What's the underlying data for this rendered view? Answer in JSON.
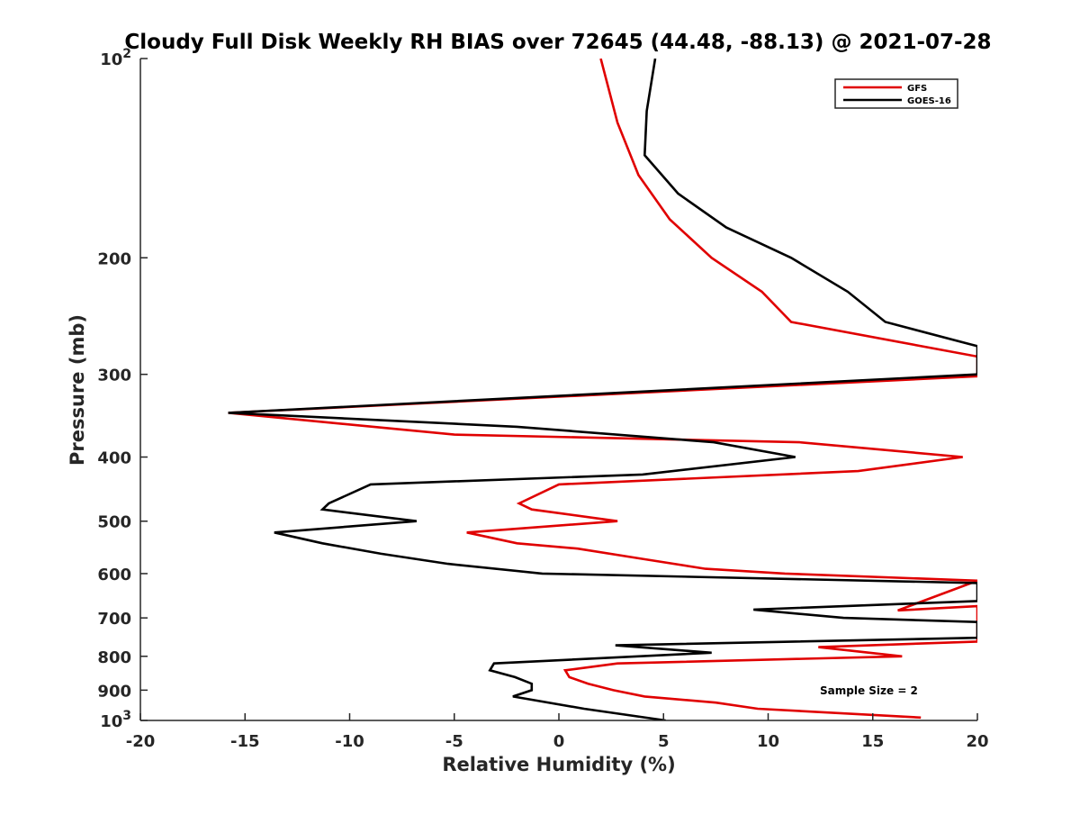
{
  "chart_data": {
    "type": "line",
    "title": "Cloudy Full Disk Weekly RH BIAS over 72645 (44.48, -88.13) @ 2021-07-28",
    "xlabel": "Relative Humidity (%)",
    "ylabel": "Pressure (mb)",
    "xlim": [
      -20,
      20
    ],
    "ylim": [
      100,
      1000
    ],
    "yscale": "log",
    "y_reversed": true,
    "grid": false,
    "legend_position": "top-right",
    "x_ticks": [
      {
        "value": -20,
        "label": "-20"
      },
      {
        "value": -15,
        "label": "-15"
      },
      {
        "value": -10,
        "label": "-10"
      },
      {
        "value": -5,
        "label": "-5"
      },
      {
        "value": 0,
        "label": "0"
      },
      {
        "value": 5,
        "label": "5"
      },
      {
        "value": 10,
        "label": "10"
      },
      {
        "value": 15,
        "label": "15"
      },
      {
        "value": 20,
        "label": "20"
      }
    ],
    "y_ticks": [
      {
        "value": 100,
        "base": "10",
        "exp": "2"
      },
      {
        "value": 200,
        "label": "200"
      },
      {
        "value": 300,
        "label": "300"
      },
      {
        "value": 400,
        "label": "400"
      },
      {
        "value": 500,
        "label": "500"
      },
      {
        "value": 600,
        "label": "600"
      },
      {
        "value": 700,
        "label": "700"
      },
      {
        "value": 800,
        "label": "800"
      },
      {
        "value": 900,
        "label": "900"
      },
      {
        "value": 1000,
        "base": "10",
        "exp": "3"
      }
    ],
    "series": [
      {
        "name": "GFS",
        "color": "#e00000",
        "points": [
          [
            2.0,
            100
          ],
          [
            2.8,
            125
          ],
          [
            3.8,
            150
          ],
          [
            5.3,
            175
          ],
          [
            7.3,
            200
          ],
          [
            9.7,
            225
          ],
          [
            11.1,
            250
          ],
          [
            20,
            282
          ],
          [
            20,
            302
          ],
          [
            -15.8,
            343
          ],
          [
            -5.0,
            370
          ],
          [
            11.5,
            380
          ],
          [
            19.3,
            400
          ],
          [
            14.3,
            420
          ],
          [
            0.0,
            440
          ],
          [
            -1.9,
            470
          ],
          [
            -1.3,
            480
          ],
          [
            2.8,
            500
          ],
          [
            -4.4,
            520
          ],
          [
            -2.0,
            540
          ],
          [
            0.9,
            550
          ],
          [
            4.0,
            570
          ],
          [
            7.0,
            590
          ],
          [
            10.8,
            600
          ],
          [
            20,
            615
          ],
          [
            16.2,
            682
          ],
          [
            20,
            672
          ],
          [
            20,
            700
          ],
          [
            20,
            760
          ],
          [
            12.4,
            775
          ],
          [
            16.4,
            800
          ],
          [
            2.8,
            820
          ],
          [
            0.3,
            840
          ],
          [
            0.5,
            860
          ],
          [
            1.4,
            880
          ],
          [
            2.6,
            900
          ],
          [
            4.1,
            920
          ],
          [
            7.5,
            940
          ],
          [
            9.5,
            960
          ],
          [
            17.3,
            990
          ]
        ]
      },
      {
        "name": "GOES-16",
        "color": "#000000",
        "points": [
          [
            4.6,
            100
          ],
          [
            4.2,
            120
          ],
          [
            4.1,
            140
          ],
          [
            5.7,
            160
          ],
          [
            8.0,
            180
          ],
          [
            11.1,
            200
          ],
          [
            13.8,
            225
          ],
          [
            15.6,
            250
          ],
          [
            20,
            272
          ],
          [
            20,
            300
          ],
          [
            -15.8,
            343
          ],
          [
            -2.0,
            360
          ],
          [
            7.4,
            380
          ],
          [
            11.3,
            400
          ],
          [
            4.0,
            425
          ],
          [
            -9.0,
            440
          ],
          [
            -11.0,
            470
          ],
          [
            -11.3,
            480
          ],
          [
            -6.8,
            500
          ],
          [
            -13.6,
            520
          ],
          [
            -11.3,
            540
          ],
          [
            -8.5,
            560
          ],
          [
            -5.3,
            580
          ],
          [
            -0.8,
            600
          ],
          [
            20,
            620
          ],
          [
            20,
            660
          ],
          [
            9.3,
            680
          ],
          [
            13.6,
            700
          ],
          [
            20,
            710
          ],
          [
            20,
            750
          ],
          [
            2.7,
            770
          ],
          [
            7.3,
            790
          ],
          [
            -3.1,
            820
          ],
          [
            -3.3,
            840
          ],
          [
            -2.1,
            860
          ],
          [
            -1.3,
            880
          ],
          [
            -1.3,
            900
          ],
          [
            -2.2,
            920
          ],
          [
            1.2,
            960
          ],
          [
            5.1,
            1000
          ]
        ]
      }
    ],
    "annotation": "Sample Size = 2"
  }
}
